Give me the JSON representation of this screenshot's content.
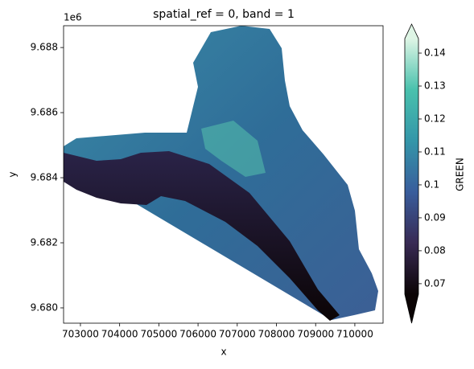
{
  "chart_data": {
    "type": "raster",
    "title": "spatial_ref = 0, band = 1",
    "x_label": "x",
    "y_label": "y",
    "y_offset_label": "1e6",
    "xlim": [
      702570,
      710720
    ],
    "xticks": [
      703000,
      704000,
      705000,
      706000,
      707000,
      708000,
      709000,
      710000
    ],
    "ylim": [
      9679530,
      9688670
    ],
    "yticks": [
      {
        "value": 9680000,
        "label": "9.680"
      },
      {
        "value": 9682000,
        "label": "9.682"
      },
      {
        "value": 9684000,
        "label": "9.684"
      },
      {
        "value": 9686000,
        "label": "9.686"
      },
      {
        "value": 9688000,
        "label": "9.688"
      }
    ],
    "colorbar": {
      "label": "GREEN",
      "clim": [
        0.0668,
        0.1444
      ],
      "ticks": [
        0.07,
        0.08,
        0.09,
        0.1,
        0.11,
        0.12,
        0.13,
        0.14
      ],
      "colormap": [
        "#0b0405",
        "#382a54",
        "#395d9c",
        "#3496a9",
        "#49c1ad",
        "#def5e5"
      ]
    }
  }
}
